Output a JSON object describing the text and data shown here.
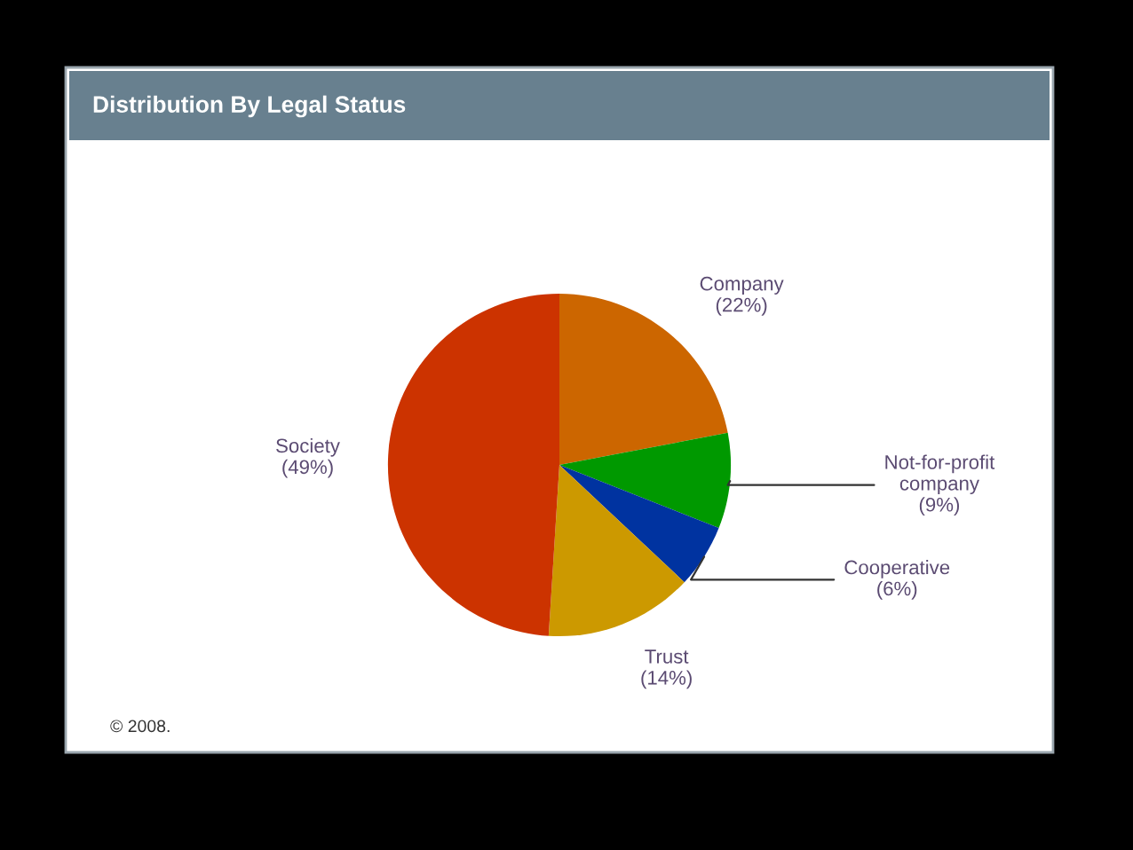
{
  "chart_data": {
    "type": "pie",
    "title": "Distribution By Legal Status",
    "categories": [
      "Company",
      "Not-for-profit\ncompany",
      "Cooperative",
      "Trust",
      "Society"
    ],
    "values": [
      22,
      9,
      6,
      14,
      49
    ],
    "colors": [
      "#cc6600",
      "#009900",
      "#0033a0",
      "#cc9900",
      "#cc3300"
    ],
    "value_labels": [
      "(22%)",
      "(9%)",
      "(6%)",
      "(14%)",
      "(49%)"
    ],
    "annotations": [
      "© 2008."
    ]
  }
}
